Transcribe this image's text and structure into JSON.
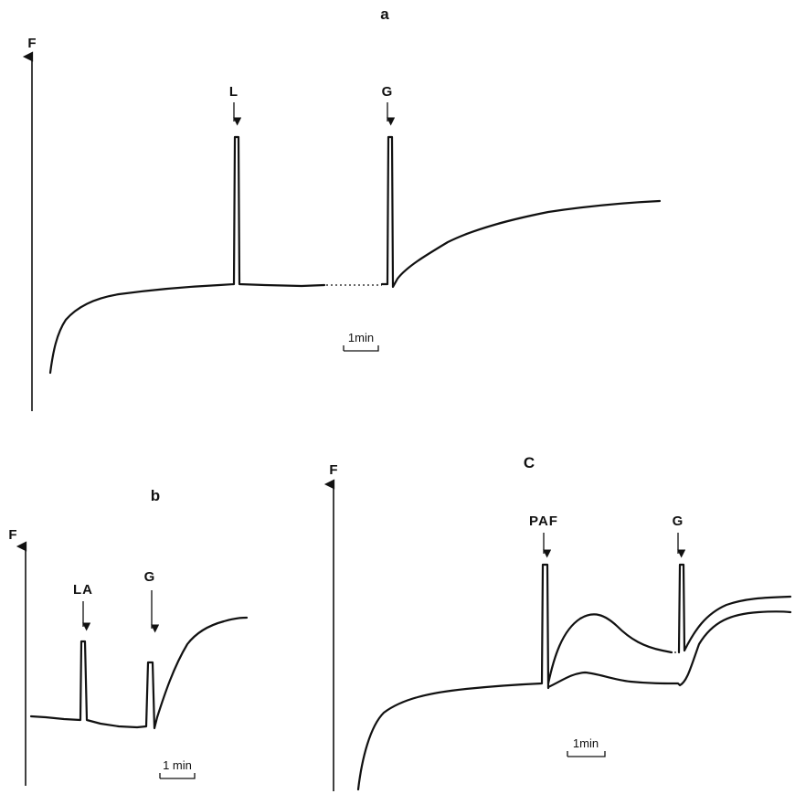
{
  "figure": {
    "panels": [
      {
        "id": "a",
        "label": "a",
        "axis_label": "F",
        "markers": [
          "L",
          "G"
        ],
        "scale_bar": "1min"
      },
      {
        "id": "b",
        "label": "b",
        "axis_label": "F",
        "markers": [
          "LA",
          "G"
        ],
        "scale_bar": "1 min"
      },
      {
        "id": "c",
        "label": "C",
        "axis_label": "F",
        "markers": [
          "PAF",
          "G"
        ],
        "scale_bar": "1min"
      }
    ]
  }
}
